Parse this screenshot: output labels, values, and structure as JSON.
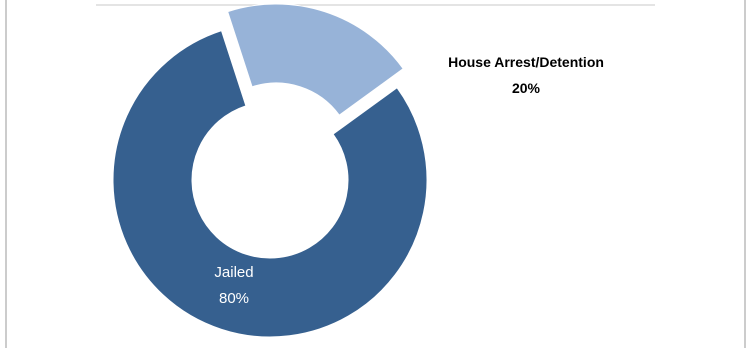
{
  "chart_data": {
    "type": "pie",
    "variant": "donut",
    "slices": [
      {
        "label": "Jailed",
        "value": 80,
        "value_label": "80%",
        "color": "#36608f"
      },
      {
        "label": "House Arrest/Detention",
        "value": 20,
        "value_label": "20%",
        "color": "#97b3d8"
      }
    ],
    "exploded": [
      "House Arrest/Detention"
    ],
    "legend": "none"
  }
}
